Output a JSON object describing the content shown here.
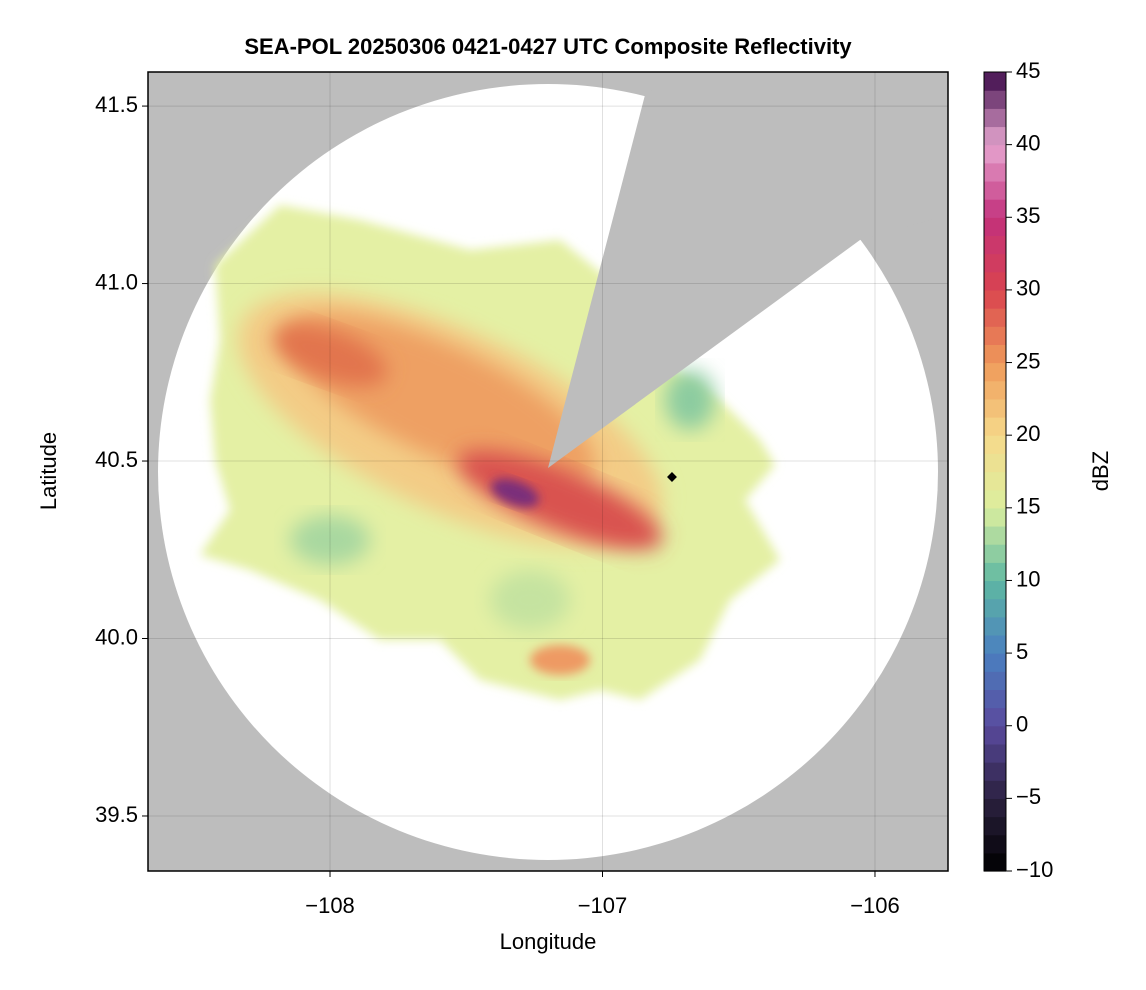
{
  "chart_data": {
    "type": "radar-map",
    "title": "SEA-POL 20250306 0421-0427 UTC Composite Reflectivity",
    "x_label": "Longitude",
    "y_label": "Latitude",
    "colorbar_label": "dBZ",
    "xlim": [
      -108.668,
      -105.732
    ],
    "ylim": [
      39.345,
      41.596
    ],
    "xticks": [
      {
        "value": -108,
        "label": "−108"
      },
      {
        "value": -107,
        "label": "−107"
      },
      {
        "value": -106,
        "label": "−106"
      }
    ],
    "yticks": [
      {
        "value": 39.5,
        "label": "39.5"
      },
      {
        "value": 40.0,
        "label": "40.0"
      },
      {
        "value": 40.5,
        "label": "40.5"
      },
      {
        "value": 41.0,
        "label": "41.0"
      },
      {
        "value": 41.5,
        "label": "41.5"
      }
    ],
    "zlim": [
      -10,
      45
    ],
    "zticks": [
      {
        "value": -10,
        "label": "−10"
      },
      {
        "value": -5,
        "label": "−5"
      },
      0,
      5,
      10,
      15,
      20,
      25,
      30,
      35,
      40,
      45
    ],
    "colormap": [
      "#000000",
      "#2b2140",
      "#5a4a9e",
      "#4a80c0",
      "#5fb8a2",
      "#dcef9e",
      "#f6d98a",
      "#ef9a5a",
      "#d9434f",
      "#c2317c",
      "#e6a6d0",
      "#3d0a4a"
    ],
    "grid": true,
    "marker": {
      "x": -106.745,
      "y": 40.455
    }
  }
}
